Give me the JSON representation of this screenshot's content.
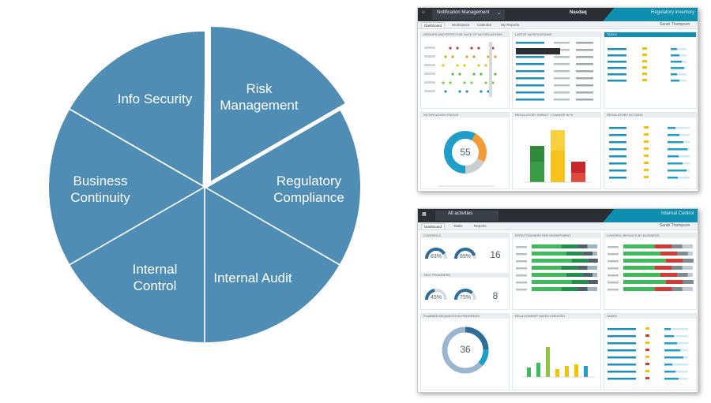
{
  "wheel": {
    "segment_color": "#4f8db4",
    "separator_color": "#ffffff",
    "segments": [
      {
        "label": "Info Security"
      },
      {
        "label": "Risk Management"
      },
      {
        "label": "Regulatory Compliance"
      },
      {
        "label": "Internal Audit"
      },
      {
        "label": "Internal Control"
      },
      {
        "label": "Business Continuity"
      }
    ]
  },
  "screenshot_top": {
    "app_title": "Notification Management",
    "brand": "Nasdaq",
    "module": "Regulatory inventory",
    "user": "Sarah Thompson",
    "tabs": [
      "Dashboard",
      "Workspace",
      "Calendar",
      "My Reports"
    ],
    "panel_titles": [
      "GROUPS AND EFFECTIVE DATE OF NOTIFICATIONS",
      "LATEST NOTIFICATIONS",
      "TASKS",
      "NOTIFICATION STATUS",
      "REGULATORY IMPACT / CHANGE IN %",
      "REGULATORY ACTIONS"
    ],
    "donut_value": "55",
    "accent_color": "#0f8fb0"
  },
  "screenshot_bottom": {
    "app_title": "All activities",
    "module": "Internal Control",
    "user": "Sarah Thompson",
    "tabs": [
      "Dashboard",
      "Tasks",
      "Reports"
    ],
    "panel_titles": [
      "CONTROLS",
      "TEST PROGRESS",
      "EFFECTIVENESS PER DEPARTMENT",
      "CONTROL RESULTS BY BUSINESS",
      "PLANNED REQUESTS IN PROGRESS",
      "RELATIONSHIP DATES CREATED",
      "TASKS"
    ],
    "gauges": [
      {
        "value": "83%",
        "level": 0.83
      },
      {
        "value": "89%",
        "level": 0.89
      },
      {
        "value": "45%",
        "level": 0.45
      },
      {
        "value": "75%",
        "level": 0.75
      }
    ],
    "counts": [
      "16",
      "8"
    ],
    "donut_value": "36",
    "accent_color": "#0f8fb0"
  }
}
